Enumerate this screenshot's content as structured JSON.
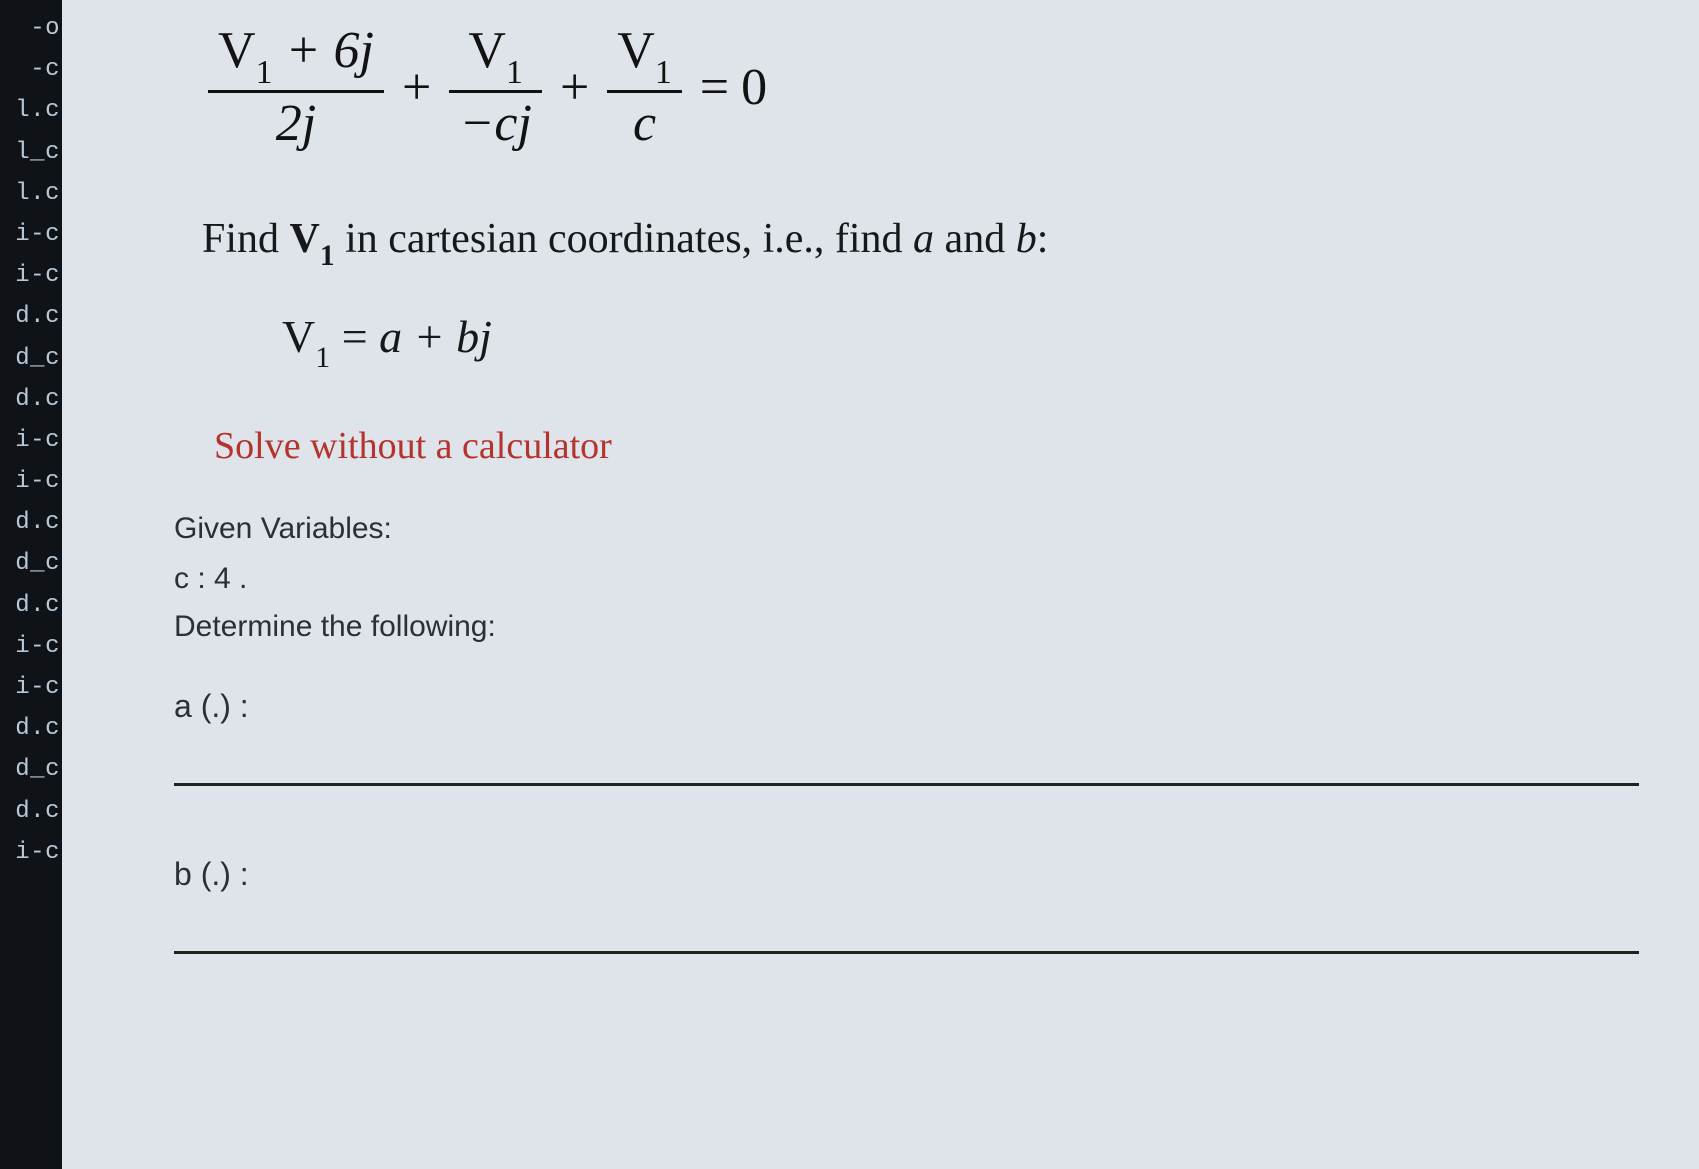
{
  "sidebar": {
    "items": [
      "-o",
      "-c",
      "l.c",
      "l_c",
      "l.c",
      "i-c",
      "i-c",
      "d.c",
      "d_c",
      "d.c",
      "i-c",
      "i-c",
      "d.c",
      "d_c",
      "d.c",
      "i-c",
      "i-c",
      "d.c",
      "d_c",
      "d.c",
      "i-c"
    ],
    "text_color": "#b8c8d8",
    "background_color": "#0f1216"
  },
  "equation": {
    "term1_num_a": "V",
    "term1_num_sub": "1",
    "term1_num_rest": " + 6j",
    "term1_den": "2j",
    "plus1": "+",
    "term2_num_a": "V",
    "term2_num_sub": "1",
    "term2_den": "−cj",
    "plus2": "+",
    "term3_num_a": "V",
    "term3_num_sub": "1",
    "term3_den": "c",
    "eq": "=",
    "rhs": "0"
  },
  "instruction": {
    "pre": "Find ",
    "var_main": "V",
    "var_sub": "1",
    "post": " in cartesian coordinates, i.e., find ",
    "a": "a",
    "and": " and ",
    "b": "b",
    "colon": ":"
  },
  "form": {
    "lhs_main": "V",
    "lhs_sub": "1",
    "eq": " = ",
    "rhs": "a + bj"
  },
  "warning": "Solve without a calculator",
  "given": {
    "title": "Given Variables:",
    "c_label": "c : ",
    "c_value": "4",
    "c_suffix": " .",
    "determine": "Determine the following:"
  },
  "answers": {
    "a_label": "a (.) :",
    "b_label": "b (.) :"
  },
  "styling": {
    "page_background": "#dfe3ea",
    "text_color": "#121212",
    "warning_color": "#b4332d",
    "meta_font": "Arial",
    "math_font": "Times New Roman",
    "equation_fontsize": 52,
    "instruction_fontsize": 42,
    "form_fontsize": 46,
    "warning_fontsize": 38,
    "meta_fontsize": 30,
    "underline_color": "#222222",
    "underline_thickness": 3,
    "fraction_bar_thickness": 3
  }
}
